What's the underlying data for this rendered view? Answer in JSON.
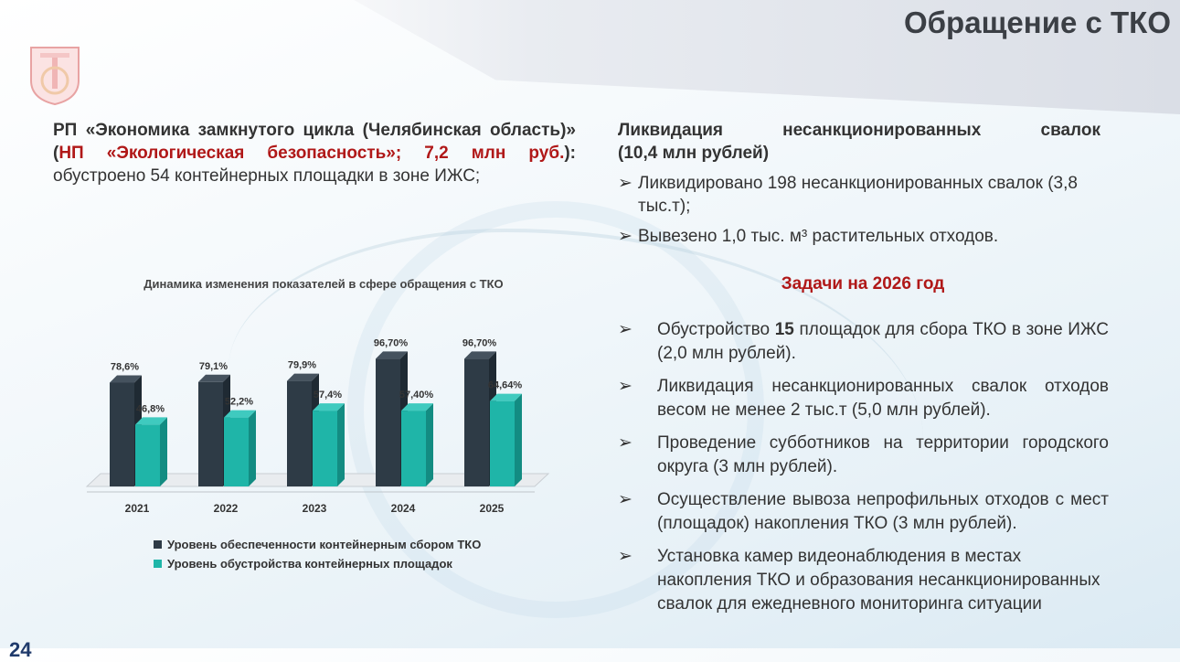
{
  "header": {
    "title": "Обращение с ТКО"
  },
  "left": {
    "p1": "РП «Экономика замкнутого цикла (Челябинская область)» (",
    "p1_red": "НП «Экологическая безопасность»; 7,2 млн руб.",
    "p1_end": "): ",
    "p1_rest": "обустроено 54 контейнерных площадки в зоне ИЖС;"
  },
  "right": {
    "head_line1": "Ликвидация несанкционированных свалок",
    "head_line2": "(10,4 млн рублей)",
    "bullets": [
      "Ликвидировано 198 несанкционированных свалок (3,8 тыс.т);",
      "Вывезено 1,0 тыс. м³ растительных отходов."
    ],
    "tasks_title": "Задачи на 2026 год",
    "tasks": [
      {
        "pre": "Обустройство ",
        "bold": "15",
        "post": " площадок  для сбора ТКО в зоне ИЖС (2,0 млн рублей)."
      },
      {
        "pre": "Ликвидация несанкционированных свалок отходов весом не менее 2 тыс.т (5,0 млн рублей).",
        "bold": "",
        "post": ""
      },
      {
        "pre": "Проведение субботников на территории городского округа (3 млн рублей).",
        "bold": "",
        "post": ""
      },
      {
        "pre": "Осуществление вывоза непрофильных отходов с мест (площадок) накопления ТКО (3 млн рублей).",
        "bold": "",
        "post": ""
      },
      {
        "pre": "Установка камер видеонаблюдения в местах накопления ТКО и образования несанкционированных свалок для ежедневного мониторинга ситуации",
        "bold": "",
        "post": ""
      }
    ],
    "arrow": "➢"
  },
  "chart_data": {
    "type": "bar",
    "title": "Динамика изменения показателей в сфере обращения с ТКО",
    "categories": [
      "2021",
      "2022",
      "2023",
      "2024",
      "2025"
    ],
    "series": [
      {
        "name": "Уровень обеспеченности контейнерным сбором ТКО",
        "values": [
          78.6,
          79.1,
          79.9,
          96.7,
          96.7
        ],
        "labels": [
          "78,6%",
          "79,1%",
          "79,9%",
          "96,70%",
          "96,70%"
        ],
        "color": "#2e3b46"
      },
      {
        "name": "Уровень обустройства контейнерных площадок",
        "values": [
          46.8,
          52.2,
          57.4,
          57.4,
          64.64
        ],
        "labels": [
          "46,8%",
          "52,2%",
          "57,4%",
          "57,40%",
          "64,64%"
        ],
        "color": "#1fb5a8"
      }
    ],
    "ylim": [
      0,
      100
    ],
    "grid": false,
    "legend": "bottom"
  },
  "footer": {
    "page": "24"
  }
}
